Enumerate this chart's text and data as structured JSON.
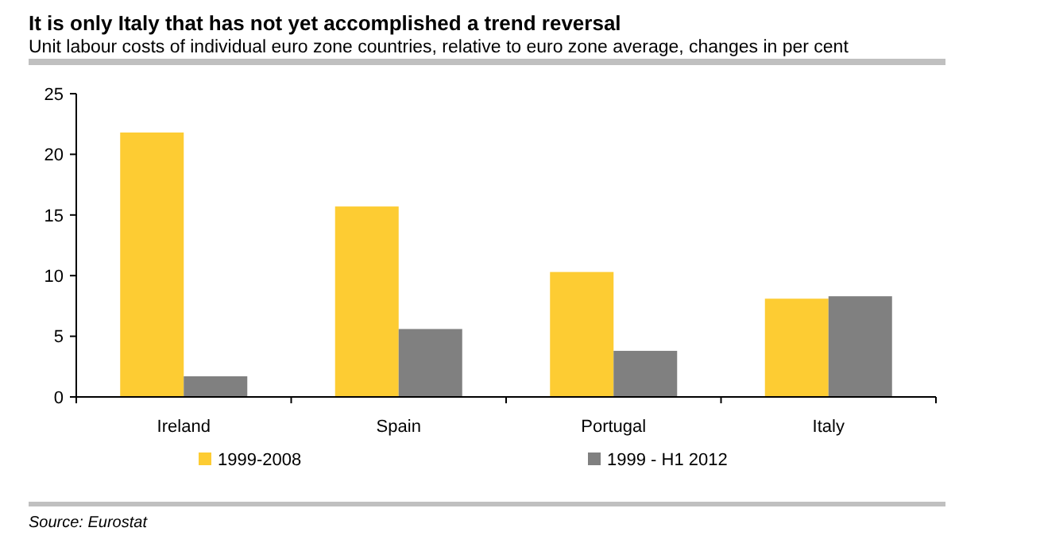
{
  "chart_data": {
    "type": "bar",
    "title": "It is only Italy that has not yet accomplished a trend reversal",
    "subtitle": "Unit labour costs of individual euro zone countries, relative to euro zone average, changes in per cent",
    "categories": [
      "Ireland",
      "Spain",
      "Portugal",
      "Italy"
    ],
    "series": [
      {
        "name": "1999-2008",
        "color": "#fdcc33",
        "values": [
          21.8,
          15.7,
          10.3,
          8.1
        ]
      },
      {
        "name": "1999 - H1 2012",
        "color": "#808080",
        "values": [
          1.7,
          5.6,
          3.8,
          8.3
        ]
      }
    ],
    "ylim": [
      0,
      25
    ],
    "yticks": [
      0,
      5,
      10,
      15,
      20,
      25
    ],
    "grid": false,
    "legend": "bottom",
    "annotations": [
      "Source: Eurostat"
    ]
  }
}
